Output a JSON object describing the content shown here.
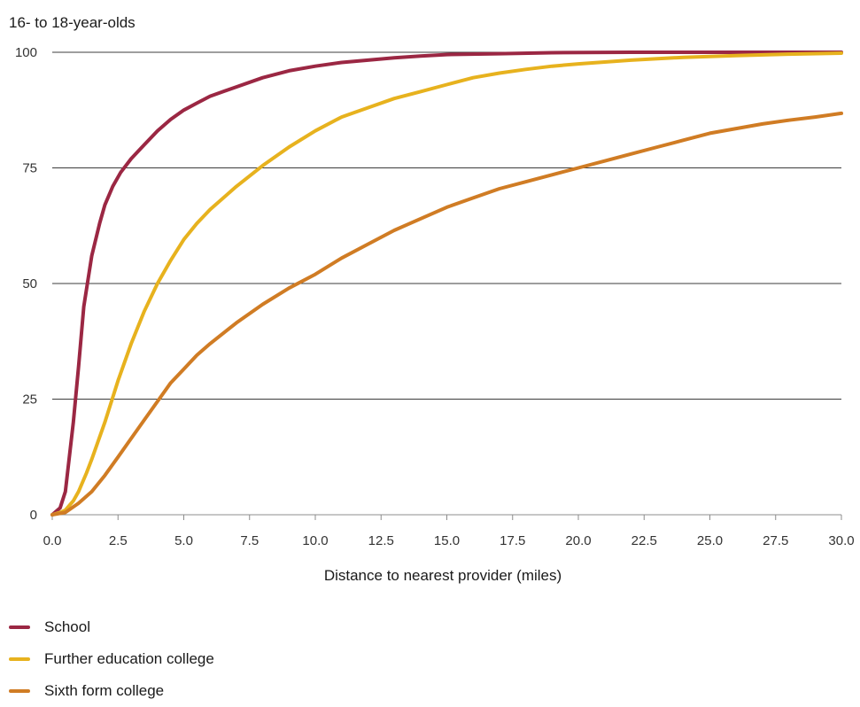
{
  "chart_data": {
    "type": "line",
    "ylabel": "16- to 18-year-olds",
    "xlabel": "Distance to nearest provider (miles)",
    "xlim": [
      0,
      30
    ],
    "ylim": [
      0,
      100
    ],
    "xticks": [
      "0.0",
      "2.5",
      "5.0",
      "7.5",
      "10.0",
      "12.5",
      "15.0",
      "17.5",
      "20.0",
      "22.5",
      "25.0",
      "27.5",
      "30.0"
    ],
    "yticks": [
      "0",
      "25",
      "50",
      "75",
      "100"
    ],
    "grid": "horizontal",
    "legend_position": "bottom-left",
    "series": [
      {
        "name": "School",
        "color": "#9b2743",
        "x": [
          0,
          0.3,
          0.5,
          0.6,
          0.8,
          1.0,
          1.2,
          1.5,
          1.8,
          2.0,
          2.3,
          2.6,
          3.0,
          3.5,
          4.0,
          4.5,
          5.0,
          5.5,
          6.0,
          7.0,
          8.0,
          9.0,
          10.0,
          11.0,
          12.0,
          13.0,
          14.0,
          15.0,
          17.0,
          19.0,
          22.0,
          25.0,
          28.0,
          30.0
        ],
        "y": [
          0,
          1.5,
          5,
          10,
          20,
          32,
          45,
          56,
          63,
          67,
          71,
          74,
          77,
          80,
          83,
          85.5,
          87.5,
          89,
          90.5,
          92.5,
          94.5,
          96,
          97,
          97.8,
          98.3,
          98.8,
          99.2,
          99.5,
          99.7,
          99.9,
          100,
          100,
          100,
          100
        ]
      },
      {
        "name": "Further education college",
        "color": "#e7b21e",
        "x": [
          0,
          0.3,
          0.5,
          0.8,
          1.0,
          1.3,
          1.5,
          2.0,
          2.5,
          3.0,
          3.5,
          4.0,
          4.5,
          5.0,
          5.5,
          6.0,
          7.0,
          8.0,
          9.0,
          10.0,
          11.0,
          12.0,
          13.0,
          14.0,
          15.0,
          16.0,
          17.0,
          18.0,
          19.0,
          20.0,
          22.0,
          24.0,
          26.0,
          28.0,
          30.0
        ],
        "y": [
          0,
          0.5,
          1,
          3,
          5,
          9,
          12,
          20,
          29,
          37,
          44,
          50,
          55,
          59.5,
          63,
          66,
          71,
          75.5,
          79.5,
          83,
          86,
          88,
          90,
          91.5,
          93,
          94.5,
          95.5,
          96.3,
          97,
          97.5,
          98.3,
          98.9,
          99.3,
          99.6,
          99.8
        ]
      },
      {
        "name": "Sixth form college",
        "color": "#d07c24",
        "x": [
          0,
          0.5,
          1.0,
          1.5,
          2.0,
          2.5,
          3.0,
          3.5,
          4.0,
          4.5,
          5.0,
          5.5,
          6.0,
          7.0,
          8.0,
          9.0,
          10.0,
          11.0,
          12.0,
          13.0,
          14.0,
          15.0,
          16.0,
          17.0,
          18.0,
          19.0,
          20.0,
          21.0,
          22.0,
          23.0,
          24.0,
          25.0,
          26.0,
          27.0,
          28.0,
          29.0,
          30.0
        ],
        "y": [
          0,
          0.5,
          2.5,
          5,
          8.5,
          12.5,
          16.5,
          20.5,
          24.5,
          28.5,
          31.5,
          34.5,
          37,
          41.5,
          45.5,
          49,
          52,
          55.5,
          58.5,
          61.5,
          64,
          66.5,
          68.5,
          70.5,
          72,
          73.5,
          75,
          76.5,
          78,
          79.5,
          81,
          82.5,
          83.5,
          84.5,
          85.3,
          86,
          86.8
        ]
      }
    ]
  }
}
